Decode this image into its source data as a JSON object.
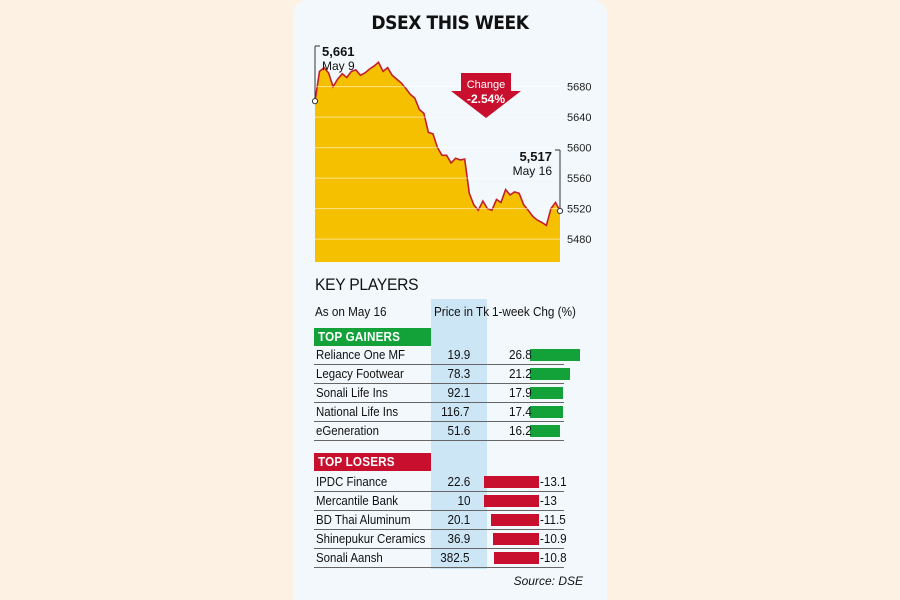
{
  "title": "DSEX THIS WEEK",
  "chart_data": {
    "type": "area",
    "ylim": [
      5450,
      5715
    ],
    "yticks": [
      5480,
      5520,
      5560,
      5600,
      5640,
      5680
    ],
    "series": [
      {
        "values": [
          5661,
          5700,
          5705,
          5698,
          5680,
          5690,
          5697,
          5692,
          5700,
          5702,
          5695,
          5698,
          5703,
          5707,
          5712,
          5700,
          5705,
          5695,
          5690,
          5685,
          5678,
          5670,
          5665,
          5650,
          5645,
          5620,
          5618,
          5600,
          5590,
          5590,
          5580,
          5586,
          5584,
          5585,
          5540,
          5525,
          5518,
          5530,
          5520,
          5518,
          5532,
          5528,
          5545,
          5538,
          5542,
          5540,
          5525,
          5518,
          5510,
          5505,
          5502,
          5498,
          5520,
          5528,
          5517
        ],
        "fill": "#f5c000",
        "stroke": "#c41e2a"
      }
    ],
    "start": {
      "value": "5,661",
      "date": "May 9"
    },
    "end": {
      "value": "5,517",
      "date": "May 16"
    },
    "change": {
      "label": "Change",
      "value": "-2.54%"
    }
  },
  "key_players": {
    "title": "KEY PLAYERS",
    "as_on": "As on May 16",
    "price_header": "Price in Tk",
    "chg_header": "1-week Chg (%)",
    "gainers_label": "TOP GAINERS",
    "losers_label": "TOP LOSERS",
    "gain_color": "#13a23a",
    "loss_color": "#c8102e",
    "gainers": [
      {
        "name": "Reliance One MF",
        "price": "19.9",
        "chg": "26.8",
        "chg_value": 26.8
      },
      {
        "name": "Legacy Footwear",
        "price": "78.3",
        "chg": "21.2",
        "chg_value": 21.2
      },
      {
        "name": "Sonali Life Ins",
        "price": "92.1",
        "chg": "17.9",
        "chg_value": 17.9
      },
      {
        "name": "National Life Ins",
        "price": "116.7",
        "chg": "17.4",
        "chg_value": 17.4
      },
      {
        "name": "eGeneration",
        "price": "51.6",
        "chg": "16.2",
        "chg_value": 16.2
      }
    ],
    "losers": [
      {
        "name": "IPDC Finance",
        "price": "22.6",
        "chg": "-13.1",
        "chg_value": -13.1
      },
      {
        "name": "Mercantile Bank",
        "price": "10",
        "chg": "-13",
        "chg_value": -13
      },
      {
        "name": "BD Thai Aluminum",
        "price": "20.1",
        "chg": "-11.5",
        "chg_value": -11.5
      },
      {
        "name": "Shinepukur Ceramics",
        "price": "36.9",
        "chg": "-10.9",
        "chg_value": -10.9
      },
      {
        "name": "Sonali Aansh",
        "price": "382.5",
        "chg": "-10.8",
        "chg_value": -10.8
      }
    ]
  },
  "source": "Source: DSE"
}
